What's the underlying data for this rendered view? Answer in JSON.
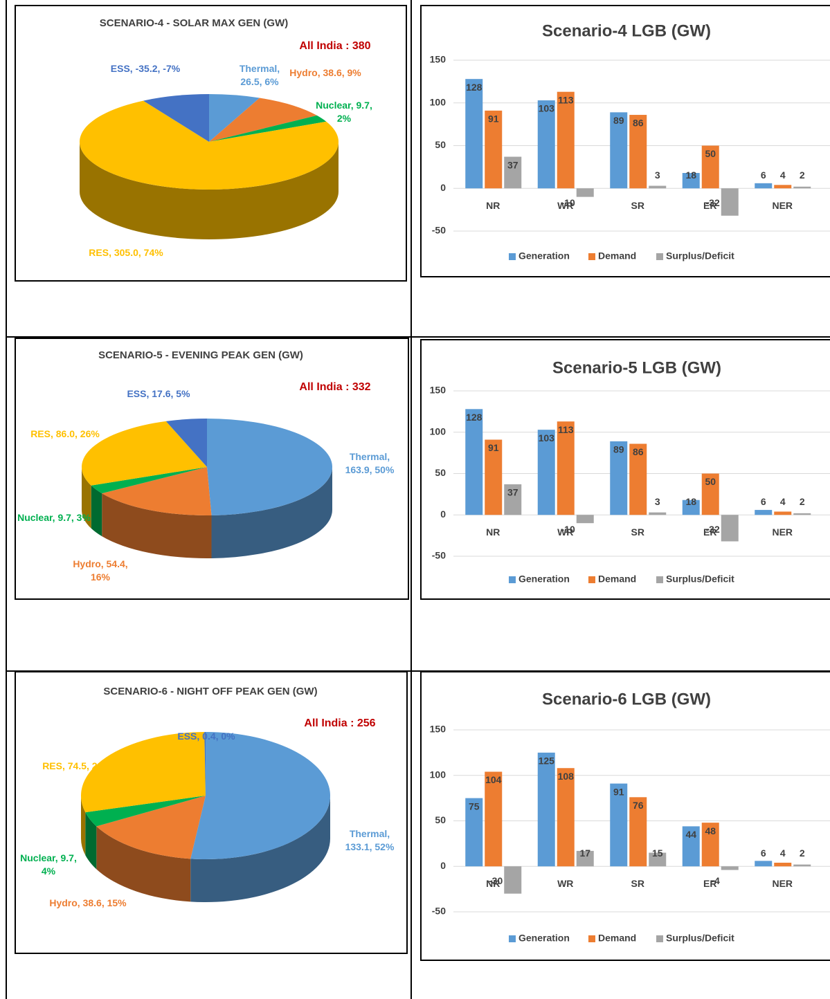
{
  "chart_data": [
    {
      "type": "pie",
      "title": "SCENARIO-4 - SOLAR MAX GEN (GW)",
      "annotation": "All India : 380",
      "values": [
        26.5,
        38.6,
        9.7,
        305.0,
        -35.2
      ],
      "value_labels": [
        "Thermal, 26.5, 6%",
        "Hydro, 38.6, 9%",
        "Nuclear, 9.7, 2%",
        "RES, 305.0, 74%",
        "ESS, -35.2, -7%"
      ],
      "colors": [
        "#5b9bd5",
        "#ed7d31",
        "#00b050",
        "#ffc000",
        "#4472c4"
      ]
    },
    {
      "type": "bar",
      "title": "Scenario-4 LGB (GW)",
      "categories": [
        "NR",
        "WR",
        "SR",
        "ER",
        "NER"
      ],
      "series": [
        {
          "name": "Generation",
          "color": "#5b9bd5",
          "values": [
            128,
            103,
            89,
            18,
            6
          ]
        },
        {
          "name": "Demand",
          "color": "#ed7d31",
          "values": [
            91,
            113,
            86,
            50,
            4
          ]
        },
        {
          "name": "Surplus/Deficit",
          "color": "#a5a5a5",
          "values": [
            37,
            -10,
            3,
            -32,
            2
          ]
        }
      ],
      "ylim": [
        -50,
        150
      ],
      "yticks": [
        -50,
        0,
        50,
        100,
        150
      ],
      "grid": true,
      "legend": "bottom"
    },
    {
      "type": "pie",
      "title": "SCENARIO-5 - EVENING PEAK GEN (GW)",
      "annotation": "All India : 332",
      "values": [
        163.9,
        54.4,
        9.7,
        86.0,
        17.6
      ],
      "value_labels": [
        "Thermal, 163.9, 50%",
        "Hydro, 54.4, 16%",
        "Nuclear, 9.7, 3%",
        "RES, 86.0, 26%",
        "ESS, 17.6, 5%"
      ],
      "colors": [
        "#5b9bd5",
        "#ed7d31",
        "#00b050",
        "#ffc000",
        "#4472c4"
      ]
    },
    {
      "type": "bar",
      "title": "Scenario-5 LGB (GW)",
      "categories": [
        "NR",
        "WR",
        "SR",
        "ER",
        "NER"
      ],
      "series": [
        {
          "name": "Generation",
          "color": "#5b9bd5",
          "values": [
            128,
            103,
            89,
            18,
            6
          ]
        },
        {
          "name": "Demand",
          "color": "#ed7d31",
          "values": [
            91,
            113,
            86,
            50,
            4
          ]
        },
        {
          "name": "Surplus/Deficit",
          "color": "#a5a5a5",
          "values": [
            37,
            -10,
            3,
            -32,
            2
          ]
        }
      ],
      "ylim": [
        -50,
        150
      ],
      "yticks": [
        -50,
        0,
        50,
        100,
        150
      ],
      "grid": true,
      "legend": "bottom"
    },
    {
      "type": "pie",
      "title": "SCENARIO-6 - NIGHT OFF PEAK GEN (GW)",
      "annotation": "All India : 256",
      "values": [
        133.1,
        38.6,
        9.7,
        74.5,
        0.4
      ],
      "value_labels": [
        "Thermal, 133.1, 52%",
        "Hydro, 38.6, 15%",
        "Nuclear, 9.7, 4%",
        "RES, 74.5, 29%",
        "ESS, 0.4, 0%"
      ],
      "colors": [
        "#5b9bd5",
        "#ed7d31",
        "#00b050",
        "#ffc000",
        "#4472c4"
      ]
    },
    {
      "type": "bar",
      "title": "Scenario-6 LGB  (GW)",
      "categories": [
        "NR",
        "WR",
        "SR",
        "ER",
        "NER"
      ],
      "series": [
        {
          "name": "Generation",
          "color": "#5b9bd5",
          "values": [
            75,
            125,
            91,
            44,
            6
          ]
        },
        {
          "name": "Demand",
          "color": "#ed7d31",
          "values": [
            104,
            108,
            76,
            48,
            4
          ]
        },
        {
          "name": "Surplus/Deficit",
          "color": "#a5a5a5",
          "values": [
            -30,
            17,
            15,
            -4,
            2
          ]
        }
      ],
      "ylim": [
        -50,
        150
      ],
      "yticks": [
        -50,
        0,
        50,
        100,
        150
      ],
      "grid": true,
      "legend": "bottom"
    }
  ]
}
